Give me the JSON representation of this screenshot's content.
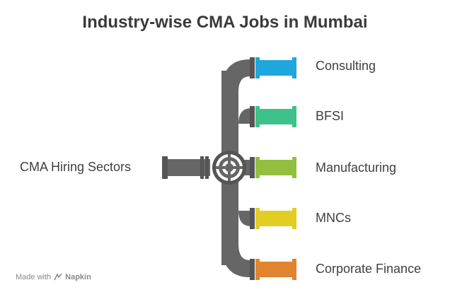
{
  "title": "Industry-wise CMA Jobs in Mumbai",
  "source": {
    "label": "CMA Hiring Sectors"
  },
  "sectors": [
    {
      "label": "Consulting",
      "color": "#1ea7dd"
    },
    {
      "label": "BFSI",
      "color": "#3cc28a"
    },
    {
      "label": "Manufacturing",
      "color": "#92bf3f"
    },
    {
      "label": "MNCs",
      "color": "#e2cd23"
    },
    {
      "label": "Corporate Finance",
      "color": "#e0842f"
    }
  ],
  "pipe_color": "#666666",
  "footer": {
    "prefix": "Made with",
    "brand": "Napkin"
  }
}
